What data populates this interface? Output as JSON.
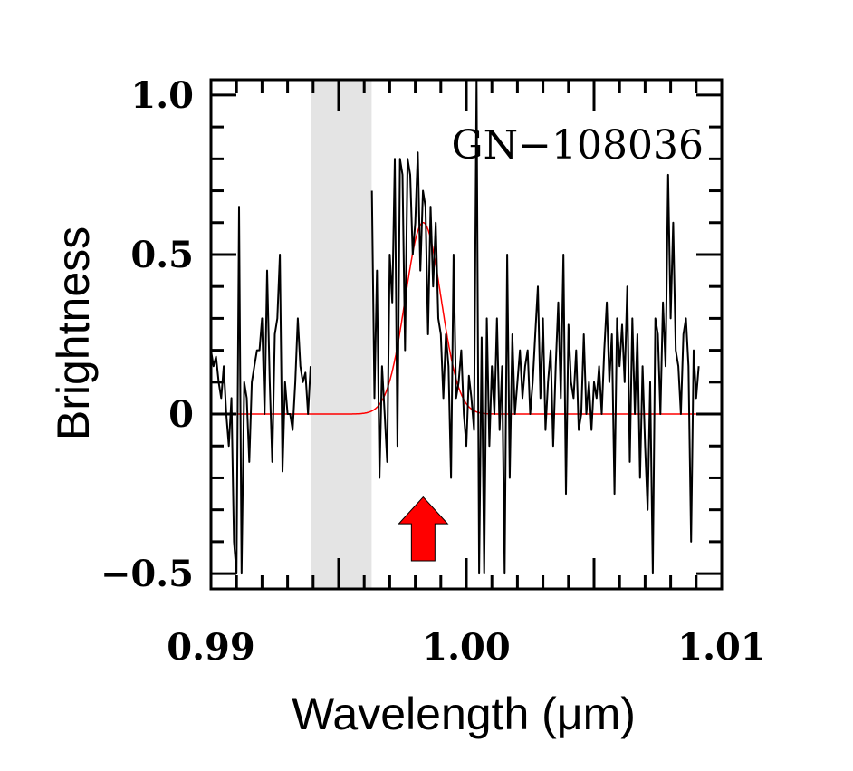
{
  "chart_data": {
    "type": "line",
    "title": "",
    "annotation": "GN−108036",
    "xlabel": "Wavelength (μm)",
    "ylabel": "Brightness",
    "xlim": [
      0.99,
      1.01
    ],
    "ylim": [
      -0.548,
      1.048
    ],
    "x_ticks": [
      0.99,
      1.0,
      1.01
    ],
    "x_tick_labels": [
      "0.99",
      "1.00",
      "1.01"
    ],
    "y_ticks": [
      1.0,
      0.5,
      0,
      -0.5
    ],
    "y_tick_labels": [
      "1.0",
      "0.5",
      "0",
      "−0.5"
    ],
    "x_major_step": 0.005,
    "x_minor_step": 0.001,
    "y_major_step": 0.5,
    "y_minor_step": 0.1,
    "grid": false,
    "masked_region": {
      "x_range": [
        0.99391,
        0.99629
      ],
      "color": "#e4e4e4"
    },
    "series": [
      {
        "name": "spectrum",
        "color": "#000000",
        "x_start": 0.99,
        "x_step": 0.0001,
        "values": [
          0.2,
          0.15,
          0.18,
          0.1,
          0.05,
          0.15,
          0.0,
          -0.1,
          0.05,
          -0.4,
          -0.5,
          0.65,
          -0.5,
          0.1,
          0.05,
          -0.15,
          0.1,
          0.15,
          0.2,
          0.2,
          0.3,
          0.0,
          0.45,
          0.1,
          -0.15,
          0.25,
          0.3,
          0.5,
          -0.18,
          0.1,
          0.0,
          0.0,
          -0.05,
          0.1,
          0.3,
          0.15,
          0.1,
          0.13,
          0.0,
          0.15,
          null,
          null,
          null,
          null,
          null,
          null,
          null,
          null,
          null,
          null,
          null,
          null,
          null,
          null,
          null,
          null,
          null,
          null,
          null,
          null,
          null,
          null,
          null,
          0.7,
          0.05,
          0.45,
          -0.2,
          0.15,
          0.0,
          -0.15,
          0.5,
          0.35,
          0.8,
          -0.1,
          0.8,
          0.75,
          0.2,
          0.8,
          0.75,
          0.5,
          0.6,
          0.82,
          0.45,
          0.7,
          0.65,
          0.25,
          0.65,
          0.4,
          0.6,
          0.3,
          0.25,
          0.05,
          0.25,
          0.15,
          -0.2,
          0.5,
          0.05,
          0.1,
          0.2,
          0.0,
          -0.1,
          0.12,
          0.05,
          -0.05,
          1.05,
          -0.5,
          0.24,
          -0.5,
          0.3,
          -0.1,
          0.15,
          0.0,
          0.3,
          -0.05,
          0.15,
          -0.5,
          0.5,
          -0.2,
          0.25,
          0.0,
          0.1,
          0.2,
          0.05,
          0.15,
          0.2,
          0.0,
          0.1,
          0.25,
          0.4,
          0.05,
          0.3,
          -0.05,
          0.1,
          0.2,
          -0.1,
          0.15,
          0.35,
          0.05,
          0.5,
          -0.25,
          0.28,
          0.1,
          0.05,
          0.2,
          -0.05,
          0.0,
          0.25,
          0.0,
          0.1,
          -0.05,
          0.1,
          0.05,
          0.15,
          0.0,
          0.2,
          0.35,
          0.1,
          0.25,
          -0.25,
          0.3,
          0.15,
          0.28,
          0.1,
          0.4,
          -0.15,
          0.3,
          0.0,
          0.25,
          -0.2,
          0.15,
          -0.1,
          -0.3,
          0.1,
          -0.5,
          0.3,
          0.25,
          0.0,
          0.35,
          0.15,
          0.75,
          0.3,
          0.6,
          0.2,
          0.15,
          0.0,
          0.25,
          0.3,
          0.15,
          -0.4,
          0.2,
          0.05,
          0.15
        ]
      },
      {
        "name": "gaussian-fit",
        "color": "#ff0000",
        "model": "gaussian",
        "amplitude": 0.6,
        "center": 0.99831,
        "sigma": 0.0007,
        "x_range": [
          0.991,
          1.009
        ]
      }
    ],
    "marker": {
      "type": "up-arrow",
      "x": 0.99831,
      "y_tip": -0.26,
      "y_base": -0.46,
      "color": "#ff0000"
    }
  }
}
